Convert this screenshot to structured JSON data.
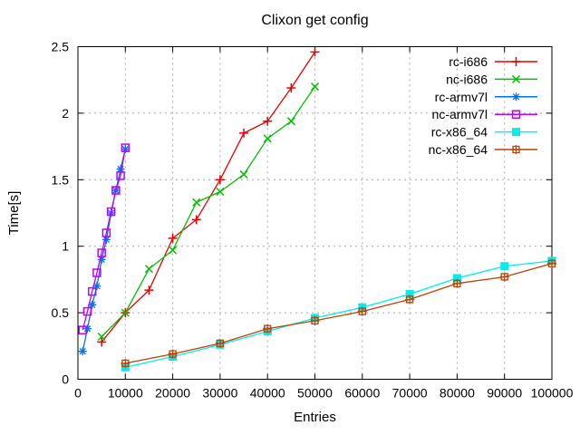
{
  "title": "Clixon get config",
  "chart_data": {
    "type": "line",
    "title": "Clixon get config",
    "xlabel": "Entries",
    "ylabel": "Time[s]",
    "xlim": [
      0,
      100000
    ],
    "ylim": [
      0,
      2.5
    ],
    "xticks": [
      0,
      10000,
      20000,
      30000,
      40000,
      50000,
      60000,
      70000,
      80000,
      90000,
      100000
    ],
    "xtick_labels": [
      "0",
      "10000",
      "20000",
      "30000",
      "40000",
      "50000",
      "60000",
      "70000",
      "80000",
      "90000",
      "100000"
    ],
    "yticks": [
      0,
      0.5,
      1,
      1.5,
      2,
      2.5
    ],
    "ytick_labels": [
      "0",
      "0.5",
      "1",
      "1.5",
      "2",
      "2.5"
    ],
    "grid": true,
    "grid_color": "#a8a8a8",
    "border_color": "#000000",
    "background_color": "#ffffff",
    "legend_position": "top-right-inside",
    "series": [
      {
        "name": "rc-i686",
        "color": "#ee0000",
        "marker": "plus",
        "x": [
          5000,
          10000,
          15000,
          20000,
          25000,
          30000,
          35000,
          40000,
          45000,
          50000
        ],
        "y": [
          0.28,
          0.5,
          0.67,
          1.06,
          1.2,
          1.5,
          1.85,
          1.94,
          2.19,
          2.46
        ]
      },
      {
        "name": "nc-i686",
        "color": "#00c000",
        "marker": "cross",
        "x": [
          5000,
          10000,
          15000,
          20000,
          25000,
          30000,
          35000,
          40000,
          45000,
          50000
        ],
        "y": [
          0.32,
          0.5,
          0.83,
          0.97,
          1.33,
          1.41,
          1.54,
          1.81,
          1.94,
          2.2
        ]
      },
      {
        "name": "rc-armv7l",
        "color": "#0070ff",
        "marker": "asterisk",
        "x": [
          1000,
          2000,
          3000,
          4000,
          5000,
          6000,
          7000,
          8000,
          9000,
          10000
        ],
        "y": [
          0.21,
          0.38,
          0.56,
          0.7,
          0.9,
          1.05,
          1.25,
          1.42,
          1.58,
          1.73
        ]
      },
      {
        "name": "nc-armv7l",
        "color": "#c000ff",
        "marker": "open-square",
        "x": [
          1000,
          2000,
          3000,
          4000,
          5000,
          6000,
          7000,
          8000,
          9000,
          10000
        ],
        "y": [
          0.37,
          0.51,
          0.66,
          0.8,
          0.95,
          1.1,
          1.26,
          1.42,
          1.53,
          1.74
        ]
      },
      {
        "name": "rc-x86_64",
        "color": "#00eeee",
        "marker": "filled-square",
        "x": [
          10000,
          20000,
          30000,
          40000,
          50000,
          60000,
          70000,
          80000,
          90000,
          100000
        ],
        "y": [
          0.09,
          0.17,
          0.26,
          0.36,
          0.46,
          0.54,
          0.64,
          0.76,
          0.85,
          0.89
        ]
      },
      {
        "name": "nc-x86_64",
        "color": "#c04000",
        "marker": "square-plus",
        "x": [
          10000,
          20000,
          30000,
          40000,
          50000,
          60000,
          70000,
          80000,
          90000,
          100000
        ],
        "y": [
          0.12,
          0.19,
          0.27,
          0.38,
          0.44,
          0.51,
          0.6,
          0.72,
          0.77,
          0.87
        ]
      }
    ]
  }
}
